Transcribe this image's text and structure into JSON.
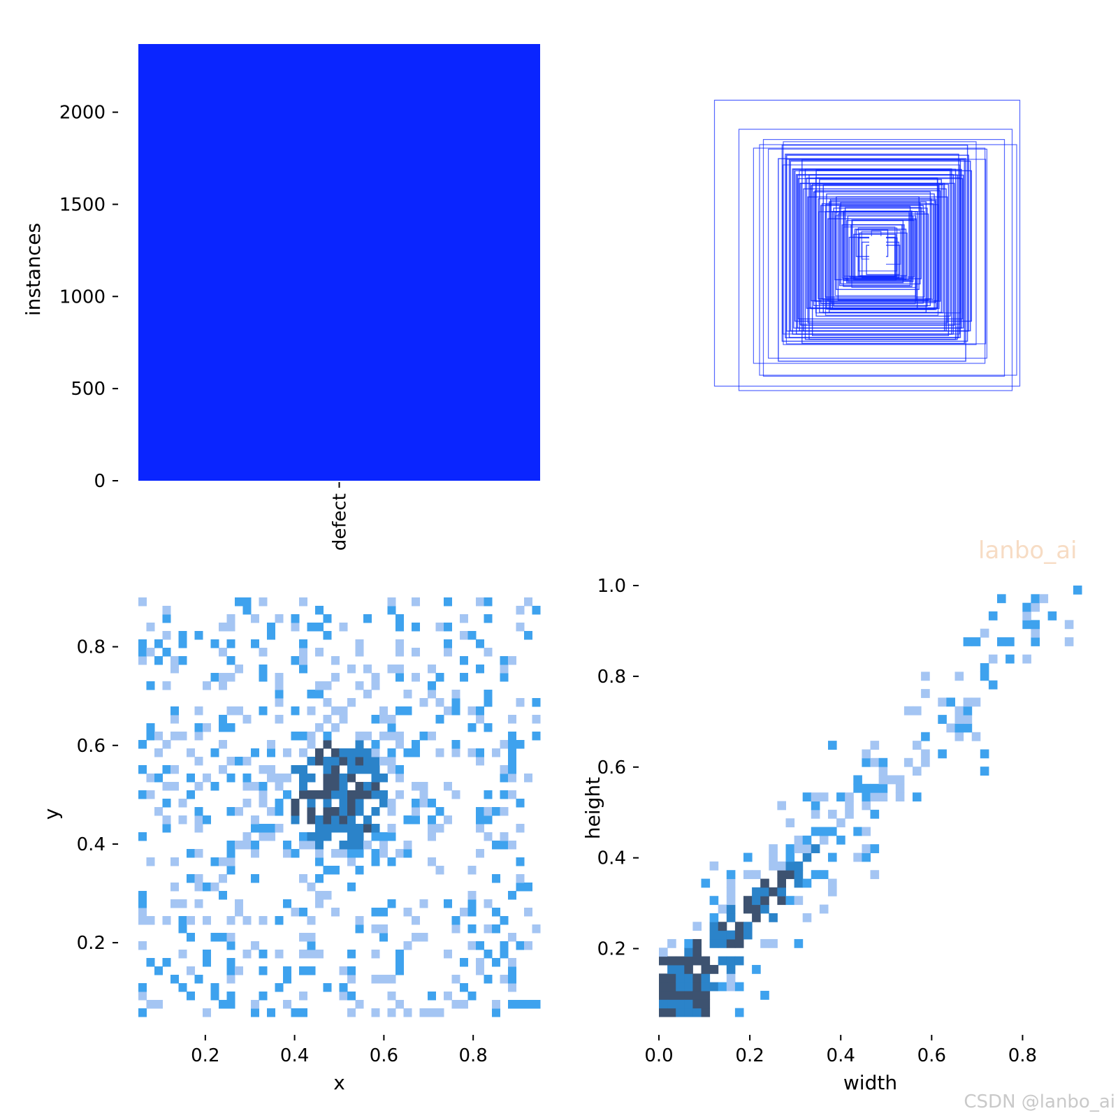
{
  "chart_data": [
    {
      "type": "bar",
      "categories": [
        "defect"
      ],
      "values": [
        2370
      ],
      "ylabel": "instances",
      "ylim": [
        0,
        2370
      ],
      "yticks": [
        0,
        500,
        1000,
        1500,
        2000
      ],
      "bar_color": "#0a25ff"
    },
    {
      "type": "other",
      "description_kind": "overlaid bounding boxes",
      "color": "#0a25ff",
      "boxes": [
        [
          0.95,
          0.93
        ],
        [
          0.85,
          0.85
        ],
        [
          0.75,
          0.77
        ],
        [
          0.72,
          0.7
        ],
        [
          0.68,
          0.68
        ],
        [
          0.62,
          0.6
        ],
        [
          0.55,
          0.55
        ],
        [
          0.5,
          0.5
        ],
        [
          0.45,
          0.44
        ],
        [
          0.4,
          0.42
        ],
        [
          0.35,
          0.36
        ],
        [
          0.3,
          0.3
        ],
        [
          0.25,
          0.26
        ],
        [
          0.2,
          0.22
        ],
        [
          0.16,
          0.16
        ],
        [
          0.12,
          0.14
        ],
        [
          0.09,
          0.11
        ],
        [
          0.06,
          0.09
        ],
        [
          0.6,
          0.66
        ],
        [
          0.8,
          0.75
        ]
      ]
    },
    {
      "type": "heatmap",
      "xlabel": "x",
      "ylabel": "y",
      "xlim": [
        0.05,
        0.95
      ],
      "ylim": [
        0.05,
        0.9
      ],
      "xticks": [
        0.2,
        0.4,
        0.6,
        0.8
      ],
      "yticks": [
        0.2,
        0.4,
        0.6,
        0.8
      ],
      "bins": 50,
      "center": [
        0.5,
        0.5
      ],
      "spread": [
        0.18,
        0.18
      ]
    },
    {
      "type": "heatmap",
      "xlabel": "width",
      "ylabel": "height",
      "xlim": [
        0.0,
        0.93
      ],
      "ylim": [
        0.05,
        1.0
      ],
      "xticks": [
        0.0,
        0.2,
        0.4,
        0.6,
        0.8
      ],
      "yticks": [
        0.2,
        0.4,
        0.6,
        0.8,
        1.0
      ],
      "bins": 50
    }
  ],
  "palette": {
    "c1": "#a4c5f3",
    "c2": "#3ea2ee",
    "c3": "#2b83c9",
    "c4": "#3d5270"
  },
  "watermarks": {
    "overlay": "lanbo_ai",
    "corner": "CSDN @lanbo_ai"
  }
}
